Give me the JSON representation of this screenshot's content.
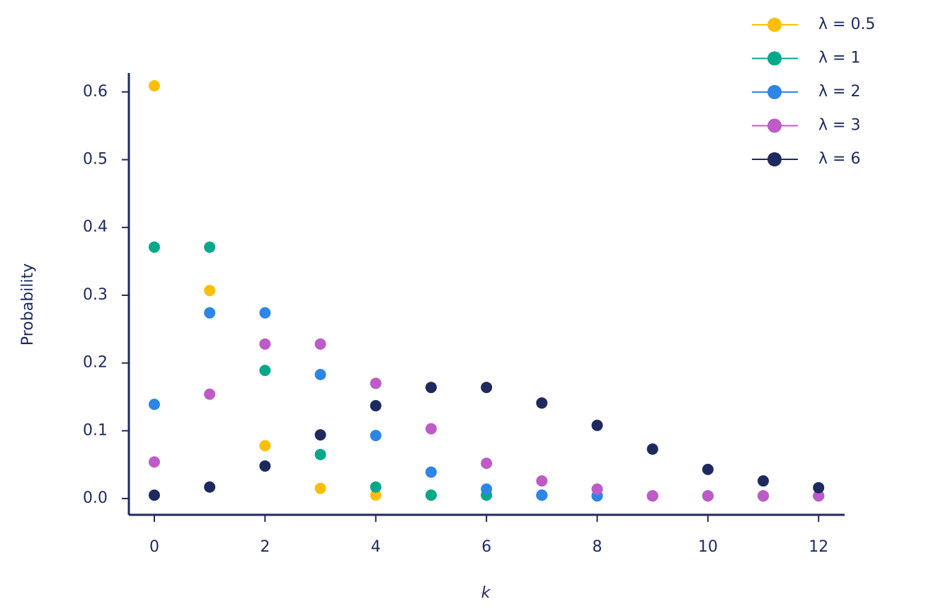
{
  "chart_data": {
    "type": "line",
    "x_label": "k",
    "y_label": "Probability",
    "x": [
      0,
      1,
      2,
      3,
      4,
      5,
      6,
      7,
      8,
      9,
      10,
      11,
      12
    ],
    "series": [
      {
        "name": "λ = 0.5",
        "color": "#fbbf0b",
        "values": [
          0.609,
          0.307,
          0.078,
          0.015,
          0.005,
          0.005,
          0.005,
          0.005,
          0.004,
          0.004,
          0.004,
          0.004,
          0.004
        ]
      },
      {
        "name": "λ = 1",
        "color": "#05a88a",
        "values": [
          0.371,
          0.371,
          0.189,
          0.065,
          0.017,
          0.005,
          0.005,
          0.005,
          0.004,
          0.004,
          0.004,
          0.004,
          0.004
        ]
      },
      {
        "name": "λ = 2",
        "color": "#2d86e5",
        "values": [
          0.139,
          0.274,
          0.274,
          0.183,
          0.093,
          0.039,
          0.014,
          0.005,
          0.004,
          0.004,
          0.004,
          0.004,
          0.004
        ]
      },
      {
        "name": "λ = 3",
        "color": "#be5bc8",
        "values": [
          0.054,
          0.154,
          0.228,
          0.228,
          0.17,
          0.103,
          0.052,
          0.026,
          0.014,
          0.004,
          0.004,
          0.004,
          0.004
        ]
      },
      {
        "name": "λ = 6",
        "color": "#1e2a5e",
        "values": [
          0.005,
          0.017,
          0.048,
          0.094,
          0.137,
          0.164,
          0.164,
          0.141,
          0.108,
          0.073,
          0.043,
          0.026,
          0.016
        ]
      }
    ],
    "xlim": [
      -0.46,
      12.47
    ],
    "xticks": [
      0,
      2,
      4,
      6,
      8,
      10,
      12
    ],
    "ylim": [
      -0.024,
      0.628
    ],
    "yticks": [
      {
        "value": 0,
        "label": "0.0"
      },
      0.1,
      0.2,
      0.3,
      0.4,
      0.5,
      0.6
    ],
    "legend": "top-right"
  }
}
